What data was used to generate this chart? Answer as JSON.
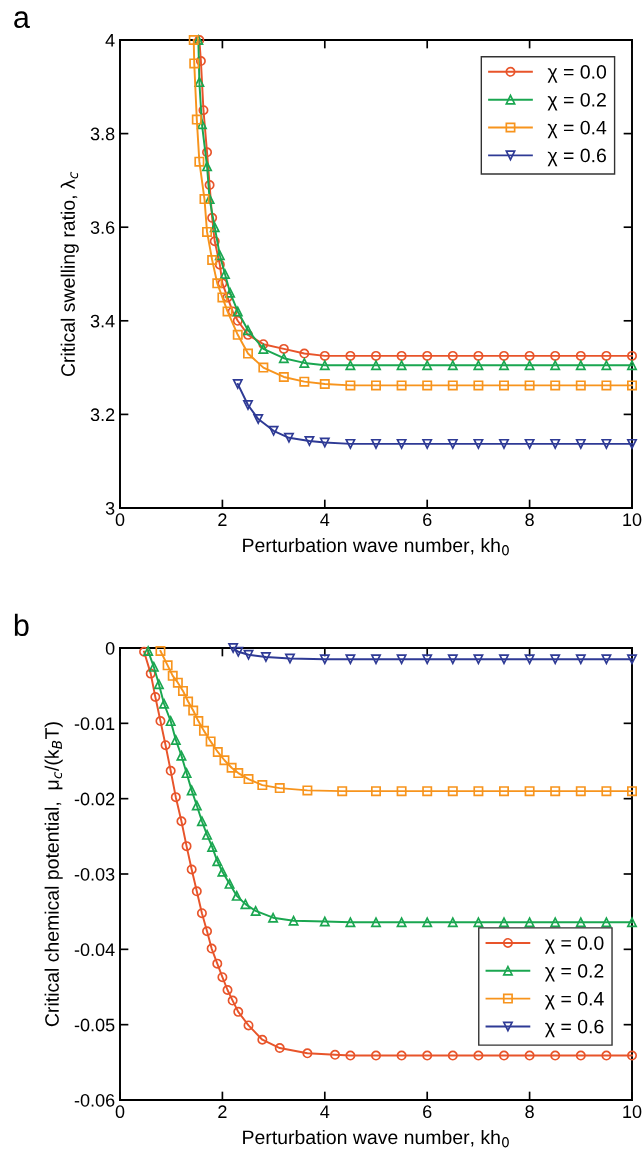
{
  "chart_data": [
    {
      "type": "line",
      "annotations": [
        "a"
      ],
      "xlabel": "Perturbation wave number, kh$_{0}$",
      "ylabel": "Critical swelling ratio, λ$_{c}$",
      "xlim": [
        0,
        10
      ],
      "xticks": [
        0,
        2,
        4,
        6,
        8,
        10
      ],
      "ylim": [
        3,
        4
      ],
      "yticks": [
        3,
        {
          "value": 3.2,
          "label": "3.2"
        },
        {
          "value": 3.4,
          "label": "3.4"
        },
        {
          "value": 3.6,
          "label": "3.6"
        },
        {
          "value": 3.8,
          "label": "3.8"
        },
        4
      ],
      "grid": false,
      "legend": "top right",
      "series": [
        {
          "name": "χ = 0.0",
          "color": "#e8542a",
          "marker": "circle",
          "x": [
            1.55,
            1.58,
            1.63,
            1.7,
            1.75,
            1.8,
            1.85,
            1.95,
            2.0,
            2.1,
            2.2,
            2.3,
            2.5,
            2.8,
            3.2,
            3.6,
            4,
            4.5,
            5,
            5.5,
            6,
            6.5,
            7,
            7.5,
            8,
            8.5,
            9,
            9.5,
            10
          ],
          "values": [
            4.0,
            3.955,
            3.85,
            3.76,
            3.69,
            3.62,
            3.57,
            3.52,
            3.48,
            3.45,
            3.42,
            3.4,
            3.37,
            3.35,
            3.34,
            3.33,
            3.325,
            3.325,
            3.325,
            3.325,
            3.325,
            3.325,
            3.325,
            3.325,
            3.325,
            3.325,
            3.325,
            3.325,
            3.325
          ]
        },
        {
          "name": "χ = 0.2",
          "color": "#1aa650",
          "marker": "triangle",
          "x": [
            1.53,
            1.55,
            1.6,
            1.7,
            1.75,
            1.85,
            1.95,
            2.05,
            2.15,
            2.3,
            2.5,
            2.8,
            3.2,
            3.6,
            4,
            4.5,
            5,
            5.5,
            6,
            6.5,
            7,
            7.5,
            8,
            8.5,
            9,
            9.5,
            10
          ],
          "values": [
            4.0,
            3.91,
            3.82,
            3.73,
            3.66,
            3.6,
            3.54,
            3.5,
            3.46,
            3.42,
            3.38,
            3.34,
            3.32,
            3.31,
            3.305,
            3.305,
            3.305,
            3.305,
            3.305,
            3.305,
            3.305,
            3.305,
            3.305,
            3.305,
            3.305,
            3.305,
            3.305
          ]
        },
        {
          "name": "χ = 0.4",
          "color": "#f7941d",
          "marker": "square",
          "x": [
            1.44,
            1.45,
            1.5,
            1.55,
            1.65,
            1.7,
            1.8,
            1.9,
            2.0,
            2.1,
            2.3,
            2.5,
            2.8,
            3.2,
            3.6,
            4,
            4.5,
            5,
            5.5,
            6,
            6.5,
            7,
            7.5,
            8,
            8.5,
            9,
            9.5,
            10
          ],
          "values": [
            4.0,
            3.95,
            3.83,
            3.74,
            3.66,
            3.59,
            3.53,
            3.48,
            3.45,
            3.42,
            3.37,
            3.33,
            3.3,
            3.28,
            3.27,
            3.265,
            3.262,
            3.262,
            3.262,
            3.262,
            3.262,
            3.262,
            3.262,
            3.262,
            3.262,
            3.262,
            3.262,
            3.262
          ]
        },
        {
          "name": "χ = 0.6",
          "color": "#2e3a95",
          "marker": "triangle_down",
          "x": [
            2.3,
            2.5,
            2.7,
            3.0,
            3.3,
            3.7,
            4,
            4.5,
            5,
            5.5,
            6,
            6.5,
            7,
            7.5,
            8,
            8.5,
            9,
            9.5,
            10
          ],
          "values": [
            3.265,
            3.22,
            3.19,
            3.165,
            3.15,
            3.143,
            3.14,
            3.137,
            3.137,
            3.137,
            3.137,
            3.137,
            3.137,
            3.137,
            3.137,
            3.137,
            3.137,
            3.137,
            3.137
          ]
        }
      ]
    },
    {
      "type": "line",
      "annotations": [
        "b"
      ],
      "xlabel": "Perturbation wave number, kh$_{0}$",
      "ylabel": "Critical chemical potential,  μ$_{c}$/(k$_{B}$T)",
      "xlim": [
        0,
        10
      ],
      "xticks": [
        0,
        2,
        4,
        6,
        8,
        10
      ],
      "ylim": [
        -0.06,
        0
      ],
      "yticks": [
        -0.06,
        -0.05,
        -0.04,
        -0.03,
        -0.02,
        -0.01,
        0
      ],
      "grid": false,
      "legend": "bottom right",
      "series": [
        {
          "name": "χ = 0.0",
          "color": "#e8542a",
          "marker": "circle",
          "x": [
            0.47,
            0.6,
            0.69,
            0.79,
            0.89,
            0.99,
            1.09,
            1.2,
            1.3,
            1.4,
            1.5,
            1.6,
            1.7,
            1.79,
            1.9,
            2.0,
            2.1,
            2.2,
            2.31,
            2.51,
            2.78,
            3.12,
            3.66,
            4.2,
            4.5,
            5,
            5.5,
            6,
            6.5,
            7,
            7.5,
            8,
            8.5,
            9,
            9.5,
            10
          ],
          "values": [
            -0.0005,
            -0.0034,
            -0.0065,
            -0.0097,
            -0.0129,
            -0.0163,
            -0.0198,
            -0.023,
            -0.0263,
            -0.0294,
            -0.0323,
            -0.0352,
            -0.0376,
            -0.0399,
            -0.0419,
            -0.0437,
            -0.0454,
            -0.0468,
            -0.0483,
            -0.0501,
            -0.052,
            -0.0531,
            -0.0538,
            -0.054,
            -0.0541,
            -0.0541,
            -0.0541,
            -0.0541,
            -0.0541,
            -0.0541,
            -0.0541,
            -0.0541,
            -0.0541,
            -0.0541,
            -0.0541,
            -0.0541
          ]
        },
        {
          "name": "χ = 0.2",
          "color": "#1aa650",
          "marker": "triangle",
          "x": [
            0.55,
            0.66,
            0.76,
            0.86,
            0.99,
            1.09,
            1.2,
            1.3,
            1.4,
            1.5,
            1.6,
            1.7,
            1.8,
            1.9,
            2.0,
            2.14,
            2.28,
            2.45,
            2.65,
            2.99,
            3.39,
            4.0,
            4.5,
            5,
            5.5,
            6,
            6.5,
            7,
            7.5,
            8,
            8.5,
            9,
            9.5,
            10
          ],
          "values": [
            -0.0004,
            -0.0025,
            -0.0048,
            -0.0074,
            -0.0097,
            -0.0122,
            -0.0143,
            -0.0166,
            -0.0189,
            -0.0209,
            -0.023,
            -0.0248,
            -0.0264,
            -0.0283,
            -0.0297,
            -0.0313,
            -0.0329,
            -0.034,
            -0.0349,
            -0.0358,
            -0.0362,
            -0.0363,
            -0.0364,
            -0.0364,
            -0.0364,
            -0.0364,
            -0.0364,
            -0.0364,
            -0.0364,
            -0.0364,
            -0.0364,
            -0.0364,
            -0.0364,
            -0.0364
          ]
        },
        {
          "name": "χ = 0.4",
          "color": "#f7941d",
          "marker": "square",
          "x": [
            0.79,
            0.93,
            1.03,
            1.13,
            1.23,
            1.33,
            1.43,
            1.53,
            1.64,
            1.77,
            1.91,
            2.04,
            2.18,
            2.31,
            2.51,
            2.78,
            3.12,
            3.66,
            4.34,
            5,
            5.5,
            6,
            6.5,
            7,
            7.5,
            8,
            8.5,
            9,
            9.5,
            10
          ],
          "values": [
            -0.0004,
            -0.0023,
            -0.0037,
            -0.0046,
            -0.0057,
            -0.0071,
            -0.0083,
            -0.0097,
            -0.011,
            -0.0124,
            -0.0138,
            -0.0149,
            -0.0159,
            -0.0166,
            -0.0174,
            -0.0182,
            -0.0186,
            -0.0189,
            -0.019,
            -0.019,
            -0.019,
            -0.019,
            -0.019,
            -0.019,
            -0.019,
            -0.019,
            -0.019,
            -0.019,
            -0.019,
            -0.019
          ]
        },
        {
          "name": "χ = 0.6",
          "color": "#2e3a95",
          "marker": "triangle_down",
          "x": [
            2.21,
            2.31,
            2.51,
            2.85,
            3.32,
            4.0,
            4.5,
            5,
            5.5,
            6,
            6.5,
            7,
            7.5,
            8,
            8.5,
            9,
            9.5,
            10
          ],
          "values": [
            0,
            -0.0005,
            -0.0009,
            -0.0012,
            -0.0014,
            -0.0015,
            -0.0015,
            -0.0015,
            -0.0015,
            -0.0015,
            -0.0015,
            -0.0015,
            -0.0015,
            -0.0015,
            -0.0015,
            -0.0015,
            -0.0015,
            -0.0015
          ]
        }
      ]
    }
  ]
}
